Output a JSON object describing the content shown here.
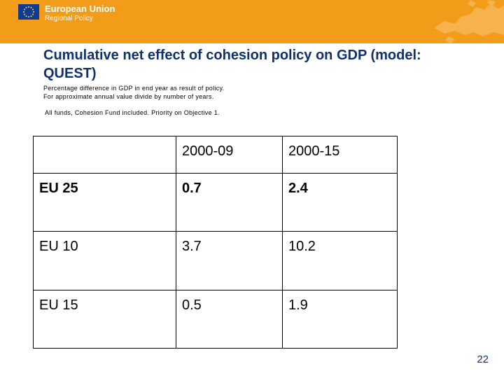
{
  "banner": {
    "brand_line1": "European Union",
    "brand_line2": "Regional Policy",
    "color": "#f39c1a",
    "flag_icon": "eu-flag-icon",
    "map_icon": "europe-map-icon"
  },
  "title": "Cumulative net effect of cohesion policy on GDP (model: QUEST)",
  "notes": {
    "line1": "Percentage difference in GDP in end year as result of policy.",
    "line2": "For approximate annual value divide by number of years.",
    "line3": "All funds, Cohesion Fund included. Priority on Objective 1."
  },
  "table": {
    "headers": [
      "",
      "2000-09",
      "2000-15"
    ],
    "rows": [
      {
        "label": "EU 25",
        "v1": "0.7",
        "v2": "2.4"
      },
      {
        "label": "EU 10",
        "v1": "3.7",
        "v2": "10.2"
      },
      {
        "label": "EU 15",
        "v1": "0.5",
        "v2": "1.9"
      }
    ]
  },
  "page_number": "22"
}
